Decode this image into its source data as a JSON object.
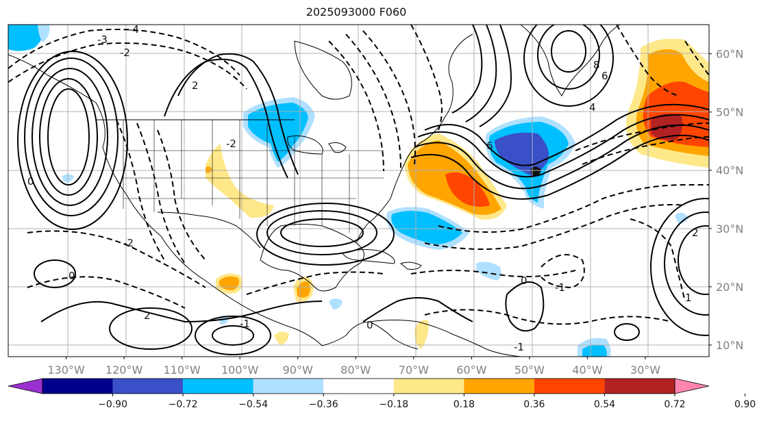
{
  "title": "2025093000 F060",
  "map": {
    "projection": "cylindrical",
    "lon_range": [
      -140,
      -19
    ],
    "lat_range": [
      8,
      65
    ],
    "lat_ticks": [
      {
        "value": 10,
        "label": "10°N"
      },
      {
        "value": 20,
        "label": "20°N"
      },
      {
        "value": 30,
        "label": "30°N"
      },
      {
        "value": 40,
        "label": "40°N"
      },
      {
        "value": 50,
        "label": "50°N"
      },
      {
        "value": 60,
        "label": "60°N"
      }
    ],
    "lon_ticks": [
      {
        "value": -130,
        "label": "130°W"
      },
      {
        "value": -120,
        "label": "120°W"
      },
      {
        "value": -110,
        "label": "110°W"
      },
      {
        "value": -100,
        "label": "100°W"
      },
      {
        "value": -90,
        "label": "90°W"
      },
      {
        "value": -80,
        "label": "80°W"
      },
      {
        "value": -70,
        "label": "70°W"
      },
      {
        "value": -60,
        "label": "60°W"
      },
      {
        "value": -50,
        "label": "50°W"
      },
      {
        "value": -40,
        "label": "40°W"
      },
      {
        "value": -30,
        "label": "30°W"
      }
    ],
    "grid": true
  },
  "colorbar": {
    "extend": "both",
    "colors": [
      "#9b30d0",
      "#00008b",
      "#3a50c8",
      "#00bfff",
      "#b0e0ff",
      "#ffffff",
      "#ffe88a",
      "#ffa500",
      "#ff4500",
      "#b22222",
      "#ff85b0"
    ],
    "ticks": [
      "−0.90",
      "−0.72",
      "−0.54",
      "−0.36",
      "−0.18",
      "0.18",
      "0.36",
      "0.54",
      "0.72",
      "0.90"
    ]
  },
  "chart_data": {
    "type": "heatmap",
    "shaded_regions": [
      {
        "name": "north-atlantic-warm-anomaly",
        "lon": -28,
        "lat": 49,
        "peak": 0.85
      },
      {
        "name": "us-east-coast-warm-anomaly",
        "lon": -62,
        "lat": 38,
        "peak": 0.7
      },
      {
        "name": "central-atlantic-cold-anomaly",
        "lon": -47,
        "lat": 42,
        "peak": -0.65
      },
      {
        "name": "great-lakes-cold-anomaly",
        "lon": -90,
        "lat": 47,
        "peak": -0.45
      },
      {
        "name": "gulf-cold-anomaly",
        "lon": -66,
        "lat": 31,
        "peak": -0.4
      },
      {
        "name": "southwest-warm-anomaly",
        "lon": -106,
        "lat": 38,
        "peak": 0.3
      },
      {
        "name": "mexico-warm-anomaly",
        "lon": -101,
        "lat": 19,
        "peak": 0.55
      },
      {
        "name": "guatemala-warm-anomaly",
        "lon": -89,
        "lat": 17,
        "peak": 0.55
      },
      {
        "name": "south-atlantic-cold-anomaly",
        "lon": -38,
        "lat": 8,
        "peak": -0.45
      }
    ],
    "contour_labels": [
      "-4",
      "-3",
      "-2",
      "-2",
      "-2",
      "-1",
      "-1",
      "1",
      "2",
      "2",
      "2",
      "4",
      "6",
      "6",
      "8",
      "0",
      "0",
      "0",
      "0",
      "-1"
    ]
  }
}
